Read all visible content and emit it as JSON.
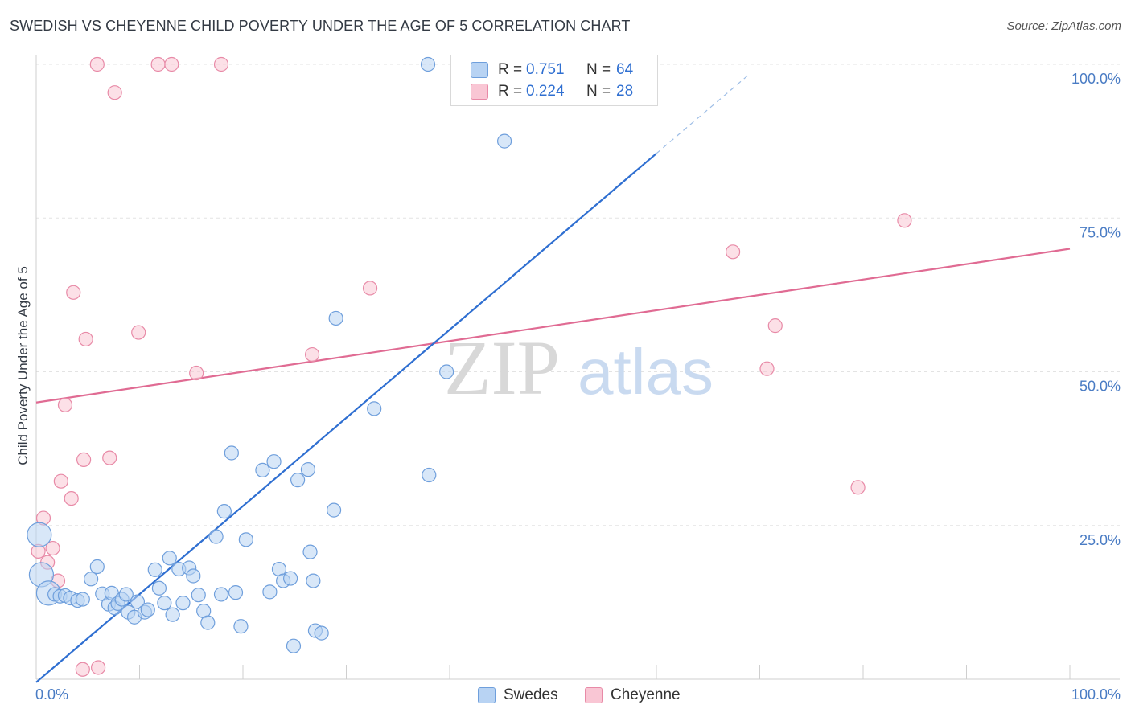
{
  "title": "SWEDISH VS CHEYENNE CHILD POVERTY UNDER THE AGE OF 5 CORRELATION CHART",
  "source": "Source: ZipAtlas.com",
  "watermark": {
    "zip": "ZIP",
    "atlas": "atlas"
  },
  "legend": {
    "rows": [
      {
        "r_label": "R =",
        "r_value": "0.751",
        "n_label": "N =",
        "n_value": "64"
      },
      {
        "r_label": "R =",
        "r_value": "0.224",
        "n_label": "N =",
        "n_value": "28"
      }
    ]
  },
  "bottom_legend": {
    "swedes": "Swedes",
    "cheyenne": "Cheyenne"
  },
  "colors": {
    "swedes_fill": "#b8d3f3",
    "swedes_stroke": "#6f9fdc",
    "swedes_line": "#2f6fd1",
    "cheyenne_fill": "#f9c6d4",
    "cheyenne_stroke": "#e88aa7",
    "cheyenne_line": "#e06b93",
    "grid": "#e3e3e3",
    "tick_text": "#4a7cc4"
  },
  "chart_data": {
    "type": "scatter",
    "title": "SWEDISH VS CHEYENNE CHILD POVERTY UNDER THE AGE OF 5 CORRELATION CHART",
    "xlabel": "",
    "ylabel": "Child Poverty Under the Age of 5",
    "xlim": [
      0,
      100
    ],
    "ylim": [
      0,
      100
    ],
    "x_tick_labels": [
      "0.0%",
      "100.0%"
    ],
    "y_ticks": [
      25,
      50,
      75,
      100
    ],
    "y_tick_labels": [
      "25.0%",
      "50.0%",
      "75.0%",
      "100.0%"
    ],
    "grid": true,
    "legend_position": "top-center",
    "series": [
      {
        "name": "Swedes",
        "r": 0.751,
        "n": 64,
        "trend": {
          "x0": 0,
          "y0": -0.5,
          "x1": 60,
          "y1": 85.5,
          "dash_to_x": 69
        },
        "points": [
          {
            "x": 0.3,
            "y": 23.5,
            "big": true
          },
          {
            "x": 0.5,
            "y": 17.0,
            "big": true
          },
          {
            "x": 1.2,
            "y": 14.0,
            "big": true
          },
          {
            "x": 1.8,
            "y": 13.8
          },
          {
            "x": 2.3,
            "y": 13.5
          },
          {
            "x": 2.8,
            "y": 13.6
          },
          {
            "x": 3.3,
            "y": 13.2
          },
          {
            "x": 4.0,
            "y": 12.8
          },
          {
            "x": 4.5,
            "y": 13.0
          },
          {
            "x": 5.3,
            "y": 16.3
          },
          {
            "x": 5.9,
            "y": 18.3
          },
          {
            "x": 6.4,
            "y": 13.9
          },
          {
            "x": 7.0,
            "y": 12.2
          },
          {
            "x": 7.3,
            "y": 14.0
          },
          {
            "x": 7.6,
            "y": 11.6
          },
          {
            "x": 7.9,
            "y": 12.3
          },
          {
            "x": 8.3,
            "y": 13.0
          },
          {
            "x": 8.7,
            "y": 13.8
          },
          {
            "x": 8.9,
            "y": 10.9
          },
          {
            "x": 9.5,
            "y": 10.1
          },
          {
            "x": 9.8,
            "y": 12.6
          },
          {
            "x": 10.5,
            "y": 10.9
          },
          {
            "x": 10.8,
            "y": 11.3
          },
          {
            "x": 11.5,
            "y": 17.8
          },
          {
            "x": 11.9,
            "y": 14.8
          },
          {
            "x": 12.4,
            "y": 12.4
          },
          {
            "x": 12.9,
            "y": 19.7
          },
          {
            "x": 13.2,
            "y": 10.5
          },
          {
            "x": 13.8,
            "y": 17.9
          },
          {
            "x": 14.2,
            "y": 12.4
          },
          {
            "x": 14.8,
            "y": 18.1
          },
          {
            "x": 15.2,
            "y": 16.8
          },
          {
            "x": 15.7,
            "y": 13.7
          },
          {
            "x": 16.2,
            "y": 11.1
          },
          {
            "x": 16.6,
            "y": 9.2
          },
          {
            "x": 17.4,
            "y": 23.2
          },
          {
            "x": 17.9,
            "y": 13.8
          },
          {
            "x": 18.2,
            "y": 27.3
          },
          {
            "x": 18.9,
            "y": 36.8
          },
          {
            "x": 19.3,
            "y": 14.1
          },
          {
            "x": 19.8,
            "y": 8.6
          },
          {
            "x": 20.3,
            "y": 22.7
          },
          {
            "x": 21.9,
            "y": 34.0
          },
          {
            "x": 22.6,
            "y": 14.2
          },
          {
            "x": 23.0,
            "y": 35.4
          },
          {
            "x": 23.5,
            "y": 17.9
          },
          {
            "x": 23.9,
            "y": 16.0
          },
          {
            "x": 24.6,
            "y": 16.4
          },
          {
            "x": 24.9,
            "y": 5.4
          },
          {
            "x": 25.3,
            "y": 32.4
          },
          {
            "x": 26.3,
            "y": 34.1
          },
          {
            "x": 26.5,
            "y": 20.7
          },
          {
            "x": 26.8,
            "y": 16.0
          },
          {
            "x": 27.0,
            "y": 7.9
          },
          {
            "x": 27.6,
            "y": 7.5
          },
          {
            "x": 28.8,
            "y": 27.5
          },
          {
            "x": 29.0,
            "y": 58.7
          },
          {
            "x": 32.7,
            "y": 44.0
          },
          {
            "x": 37.9,
            "y": 100.0
          },
          {
            "x": 38.0,
            "y": 33.2
          },
          {
            "x": 39.7,
            "y": 50.0
          },
          {
            "x": 40.8,
            "y": 100.0
          },
          {
            "x": 45.3,
            "y": 87.5
          },
          {
            "x": 54.0,
            "y": 100.0
          }
        ]
      },
      {
        "name": "Cheyenne",
        "r": 0.224,
        "n": 28,
        "trend": {
          "x0": 0,
          "y0": 45.0,
          "x1": 100,
          "y1": 70.0
        },
        "points": [
          {
            "x": 0.2,
            "y": 20.8
          },
          {
            "x": 0.7,
            "y": 26.2
          },
          {
            "x": 1.1,
            "y": 19.0
          },
          {
            "x": 1.6,
            "y": 21.3
          },
          {
            "x": 2.1,
            "y": 16.0
          },
          {
            "x": 2.4,
            "y": 32.2
          },
          {
            "x": 2.8,
            "y": 44.6
          },
          {
            "x": 3.4,
            "y": 29.4
          },
          {
            "x": 3.6,
            "y": 62.9
          },
          {
            "x": 4.5,
            "y": 1.6
          },
          {
            "x": 4.6,
            "y": 35.7
          },
          {
            "x": 4.8,
            "y": 55.3
          },
          {
            "x": 5.9,
            "y": 100.0
          },
          {
            "x": 6.0,
            "y": 1.9
          },
          {
            "x": 7.1,
            "y": 36.0
          },
          {
            "x": 7.6,
            "y": 95.4
          },
          {
            "x": 9.9,
            "y": 56.4
          },
          {
            "x": 11.8,
            "y": 100.0
          },
          {
            "x": 13.1,
            "y": 100.0
          },
          {
            "x": 15.5,
            "y": 49.8
          },
          {
            "x": 17.9,
            "y": 100.0
          },
          {
            "x": 26.7,
            "y": 52.8
          },
          {
            "x": 32.3,
            "y": 63.6
          },
          {
            "x": 67.4,
            "y": 69.5
          },
          {
            "x": 70.7,
            "y": 50.5
          },
          {
            "x": 71.5,
            "y": 57.5
          },
          {
            "x": 79.5,
            "y": 31.2
          },
          {
            "x": 84.0,
            "y": 74.6
          }
        ]
      }
    ]
  }
}
